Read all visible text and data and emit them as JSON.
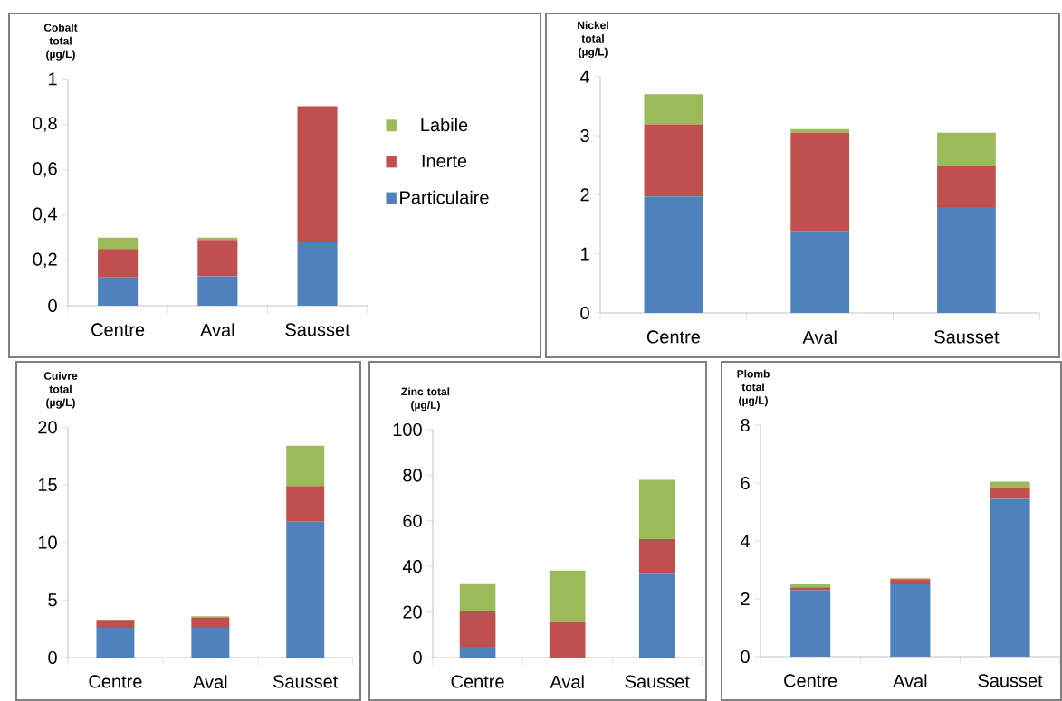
{
  "chart_data": [
    {
      "type": "bar",
      "stacked": true,
      "ylabel": "Cobalt total (µg/L)",
      "categories": [
        "Centre",
        "Aval",
        "Sausset"
      ],
      "legend": "right",
      "ylim": [
        0,
        1
      ],
      "yticks": [
        0,
        {
          "value": 0.2,
          "label": "0,2"
        },
        {
          "value": 0.4,
          "label": "0,4"
        },
        {
          "value": 0.6,
          "label": "0,6"
        },
        {
          "value": 0.8,
          "label": "0,8"
        },
        1
      ],
      "series": [
        {
          "name": "Particulaire",
          "color": "#4f81bd",
          "values": [
            0.125,
            0.13,
            0.28
          ]
        },
        {
          "name": "Inerte",
          "color": "#c0504d",
          "values": [
            0.125,
            0.16,
            0.6
          ]
        },
        {
          "name": "Labile",
          "color": "#9bbb59",
          "values": [
            0.05,
            0.01,
            0
          ]
        }
      ]
    },
    {
      "type": "bar",
      "stacked": true,
      "ylabel": "Nickel total (µg/L)",
      "categories": [
        "Centre",
        "Aval",
        "Sausset"
      ],
      "ylim": [
        0,
        4
      ],
      "yticks": [
        0,
        1,
        2,
        3,
        4
      ],
      "series": [
        {
          "color": "#4f81bd",
          "values": [
            1.97,
            1.38,
            1.79
          ]
        },
        {
          "color": "#c0504d",
          "values": [
            1.22,
            1.67,
            0.69
          ]
        },
        {
          "color": "#9bbb59",
          "values": [
            0.51,
            0.06,
            0.57
          ]
        }
      ]
    },
    {
      "type": "bar",
      "stacked": true,
      "ylabel": "Cuivre total (µg/L)",
      "categories": [
        "Centre",
        "Aval",
        "Sausset"
      ],
      "ylim": [
        0,
        20
      ],
      "yticks": [
        0,
        5,
        10,
        15,
        20
      ],
      "series": [
        {
          "color": "#4f81bd",
          "values": [
            2.6,
            2.6,
            11.8
          ]
        },
        {
          "color": "#c0504d",
          "values": [
            0.6,
            0.9,
            3.1
          ]
        },
        {
          "color": "#9bbb59",
          "values": [
            0.1,
            0.1,
            3.5
          ]
        }
      ]
    },
    {
      "type": "bar",
      "stacked": true,
      "ylabel": "Zinc total (µg/L)",
      "categories": [
        "Centre",
        "Aval",
        "Sausset"
      ],
      "ylim": [
        0,
        100
      ],
      "yticks": [
        0,
        20,
        40,
        60,
        80,
        100
      ],
      "series": [
        {
          "color": "#4f81bd",
          "values": [
            4.8,
            0,
            36.8
          ]
        },
        {
          "color": "#c0504d",
          "values": [
            15.8,
            15.6,
            15.2
          ]
        },
        {
          "color": "#9bbb59",
          "values": [
            11.6,
            22.6,
            26
          ]
        }
      ]
    },
    {
      "type": "bar",
      "stacked": true,
      "ylabel": "Plomb total (µg/L)",
      "categories": [
        "Centre",
        "Aval",
        "Sausset"
      ],
      "ylim": [
        0,
        8
      ],
      "yticks": [
        0,
        2,
        4,
        6,
        8
      ],
      "series": [
        {
          "color": "#4f81bd",
          "values": [
            2.3,
            2.5,
            5.45
          ]
        },
        {
          "color": "#c0504d",
          "values": [
            0.1,
            0.18,
            0.4
          ]
        },
        {
          "color": "#9bbb59",
          "values": [
            0.1,
            0.03,
            0.2
          ]
        }
      ]
    }
  ]
}
